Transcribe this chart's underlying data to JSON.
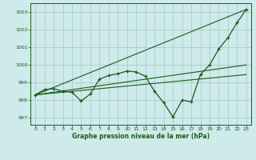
{
  "title": "Graphe pression niveau de la mer (hPa)",
  "bg_color": "#ceeaea",
  "grid_color": "#b0d0d0",
  "line_color": "#1a5c1a",
  "xlim": [
    -0.5,
    23.5
  ],
  "ylim": [
    996.6,
    1003.5
  ],
  "yticks": [
    997,
    998,
    999,
    1000,
    1001,
    1002,
    1003
  ],
  "xticks": [
    0,
    1,
    2,
    3,
    4,
    5,
    6,
    7,
    8,
    9,
    10,
    11,
    12,
    13,
    14,
    15,
    16,
    17,
    18,
    19,
    20,
    21,
    22,
    23
  ],
  "series_main": {
    "x": [
      0,
      1,
      2,
      3,
      4,
      5,
      6,
      7,
      8,
      9,
      10,
      11,
      12,
      13,
      14,
      15,
      16,
      17,
      18,
      19,
      20,
      21,
      22,
      23
    ],
    "y": [
      998.3,
      998.6,
      998.65,
      998.5,
      998.45,
      997.95,
      998.35,
      999.2,
      999.4,
      999.5,
      999.65,
      999.6,
      999.35,
      998.5,
      997.85,
      997.05,
      998.0,
      997.9,
      999.45,
      1000.0,
      1000.9,
      1001.55,
      1002.4,
      1003.15
    ]
  },
  "ref_lines": [
    {
      "x": [
        0,
        23
      ],
      "y": [
        998.3,
        1003.15
      ]
    },
    {
      "x": [
        0,
        23
      ],
      "y": [
        998.3,
        1000.0
      ]
    },
    {
      "x": [
        0,
        23
      ],
      "y": [
        998.3,
        999.45
      ]
    }
  ]
}
